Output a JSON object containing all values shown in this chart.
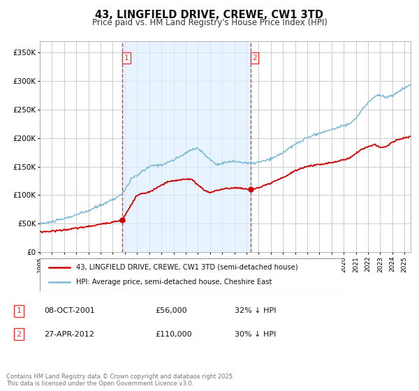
{
  "title": "43, LINGFIELD DRIVE, CREWE, CW1 3TD",
  "subtitle": "Price paid vs. HM Land Registry's House Price Index (HPI)",
  "title_fontsize": 10.5,
  "subtitle_fontsize": 8.5,
  "ylabel_ticks": [
    "£0",
    "£50K",
    "£100K",
    "£150K",
    "£200K",
    "£250K",
    "£300K",
    "£350K"
  ],
  "ytick_vals": [
    0,
    50000,
    100000,
    150000,
    200000,
    250000,
    300000,
    350000
  ],
  "ylim": [
    0,
    370000
  ],
  "xlim_start": 1995.0,
  "xlim_end": 2025.5,
  "xtick_years": [
    1995,
    1996,
    1997,
    1998,
    1999,
    2000,
    2001,
    2002,
    2003,
    2004,
    2005,
    2006,
    2007,
    2008,
    2009,
    2010,
    2011,
    2012,
    2013,
    2014,
    2015,
    2016,
    2017,
    2018,
    2019,
    2020,
    2021,
    2022,
    2023,
    2024,
    2025
  ],
  "background_color": "#ffffff",
  "plot_bg_color": "#ffffff",
  "grid_color": "#cccccc",
  "shade_color": "#ddeeff",
  "shade_alpha": 0.7,
  "hpi_color": "#7bb8d4",
  "price_color": "#cc0000",
  "marker_color": "#cc0000",
  "dashed_line_color": "#ee3333",
  "legend_label_red": "43, LINGFIELD DRIVE, CREWE, CW1 3TD (semi-detached house)",
  "legend_label_blue": "HPI: Average price, semi-detached house, Cheshire East",
  "sale1_date": "08-OCT-2001",
  "sale1_price": "£56,000",
  "sale1_hpi": "32% ↓ HPI",
  "sale1_x": 2001.77,
  "sale1_y": 56000,
  "sale2_date": "27-APR-2012",
  "sale2_price": "£110,000",
  "sale2_hpi": "30% ↓ HPI",
  "sale2_x": 2012.32,
  "sale2_y": 110000,
  "shade_x1": 2001.77,
  "shade_x2": 2012.32,
  "footnote": "Contains HM Land Registry data © Crown copyright and database right 2025.\nThis data is licensed under the Open Government Licence v3.0.",
  "footnote_fontsize": 6.0
}
